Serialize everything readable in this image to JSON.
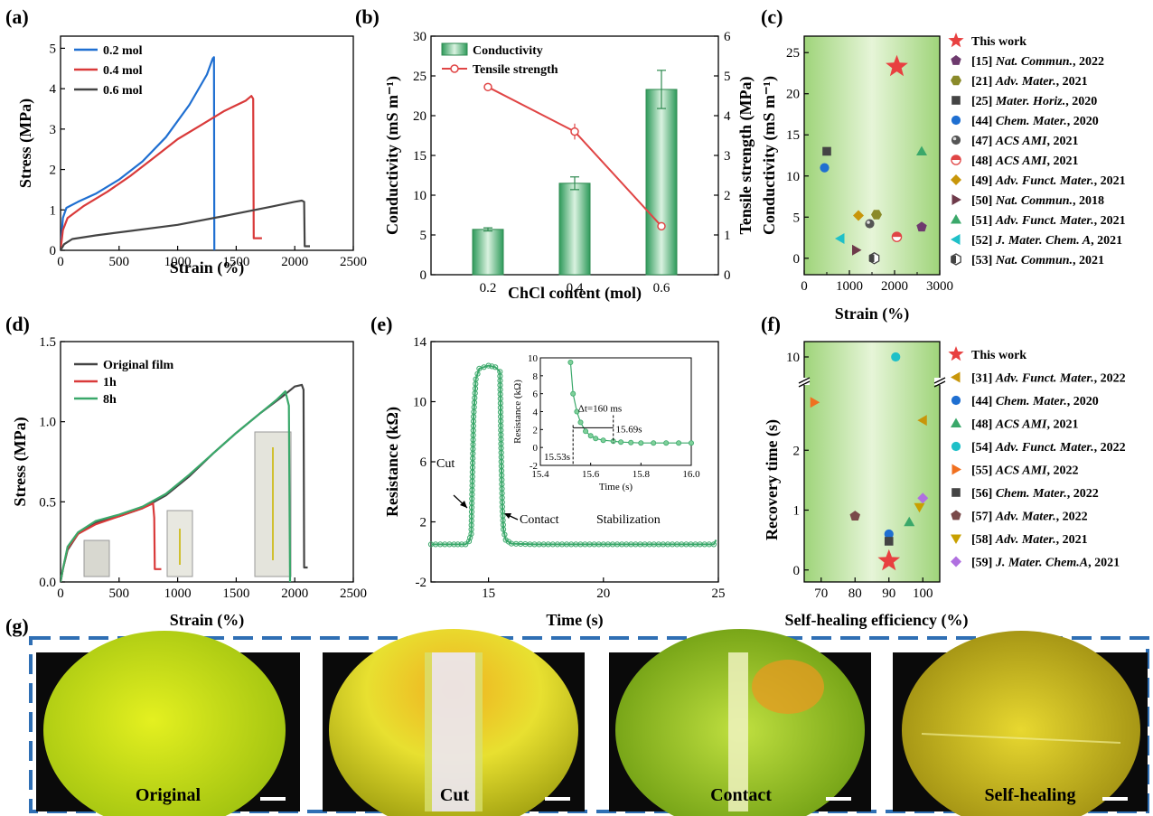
{
  "figure": {
    "panel_labels": [
      "(a)",
      "(b)",
      "(c)",
      "(d)",
      "(e)",
      "(f)",
      "(g)"
    ],
    "photo_captions": [
      "Original",
      "Cut",
      "Contact",
      "Self-healing"
    ]
  },
  "chart_data": [
    {
      "panel": "(a)",
      "type": "line",
      "xlabel": "Strain (%)",
      "ylabel": "Stress (MPa)",
      "xlim": [
        0,
        2500
      ],
      "ylim": [
        0,
        5.3
      ],
      "xticks": [
        0,
        500,
        1000,
        1500,
        2000,
        2500
      ],
      "yticks": [
        0,
        1,
        2,
        3,
        4,
        5
      ],
      "legend_position": "top-left",
      "series": [
        {
          "name": "0.2 mol",
          "color": "#1f6fd1",
          "points": [
            [
              0,
              0
            ],
            [
              20,
              0.8
            ],
            [
              50,
              1.05
            ],
            [
              150,
              1.2
            ],
            [
              300,
              1.4
            ],
            [
              500,
              1.75
            ],
            [
              700,
              2.2
            ],
            [
              900,
              2.8
            ],
            [
              1100,
              3.6
            ],
            [
              1250,
              4.35
            ],
            [
              1300,
              4.75
            ],
            [
              1310,
              4.78
            ],
            [
              1312,
              2.5
            ],
            [
              1313,
              0
            ]
          ]
        },
        {
          "name": "0.4 mol",
          "color": "#d93a3a",
          "points": [
            [
              0,
              0
            ],
            [
              20,
              0.5
            ],
            [
              60,
              0.8
            ],
            [
              200,
              1.1
            ],
            [
              400,
              1.45
            ],
            [
              600,
              1.85
            ],
            [
              800,
              2.3
            ],
            [
              1000,
              2.75
            ],
            [
              1200,
              3.1
            ],
            [
              1400,
              3.45
            ],
            [
              1580,
              3.7
            ],
            [
              1630,
              3.82
            ],
            [
              1645,
              3.75
            ],
            [
              1650,
              0.3
            ],
            [
              1720,
              0.3
            ]
          ]
        },
        {
          "name": "0.6 mol",
          "color": "#444444",
          "points": [
            [
              0,
              0
            ],
            [
              30,
              0.15
            ],
            [
              100,
              0.28
            ],
            [
              300,
              0.37
            ],
            [
              600,
              0.48
            ],
            [
              1000,
              0.63
            ],
            [
              1400,
              0.85
            ],
            [
              1800,
              1.08
            ],
            [
              2000,
              1.2
            ],
            [
              2060,
              1.23
            ],
            [
              2080,
              1.2
            ],
            [
              2085,
              0.1
            ],
            [
              2130,
              0.1
            ]
          ]
        }
      ]
    },
    {
      "panel": "(b)",
      "type": "bar",
      "xlabel": "ChCl content (mol)",
      "ylabel": "Conductivity (mS m⁻¹)",
      "ylabel_right": "Tensile strength (MPa)",
      "categories": [
        "0.2",
        "0.4",
        "0.6"
      ],
      "ylim": [
        0,
        30
      ],
      "ylim_right": [
        0,
        6
      ],
      "yticks": [
        0,
        5,
        10,
        15,
        20,
        25,
        30
      ],
      "yticks_right": [
        0,
        1,
        2,
        3,
        4,
        5,
        6
      ],
      "legend_position": "top-left",
      "series": [
        {
          "name": "Conductivity",
          "axis": "left",
          "color": "#5fbf7f",
          "values": [
            5.7,
            11.5,
            23.3
          ],
          "errors": [
            0.2,
            0.8,
            2.4
          ]
        },
        {
          "name": "Tensile strength",
          "axis": "right",
          "color": "#e04545",
          "values": [
            4.72,
            3.6,
            1.22
          ],
          "errors": [
            0.05,
            0.2,
            0.05
          ]
        }
      ]
    },
    {
      "panel": "(c)",
      "type": "scatter",
      "xlabel": "Strain (%)",
      "ylabel": "Conductivity (mS m⁻¹)",
      "xlim": [
        0,
        3000
      ],
      "ylim": [
        -2,
        27
      ],
      "xticks": [
        0,
        1000,
        2000,
        3000
      ],
      "xtick_labels": [
        "0",
        "1000",
        "2000",
        "3000"
      ],
      "xtick_minor": [
        500,
        1500,
        2500
      ],
      "yticks": [
        0,
        5,
        10,
        15,
        20,
        25
      ],
      "legend_position": "right",
      "series": [
        {
          "name": "This work",
          "ref": "",
          "journal": "",
          "year": "",
          "marker": "star",
          "color": "#e84040",
          "x": 2050,
          "y": 23.3
        },
        {
          "name": "[15]",
          "ref": "[15]",
          "journal": "Nat. Commun.",
          "year": ", 2022",
          "marker": "pentagon",
          "color": "#6e3a6e",
          "x": 2600,
          "y": 3.8
        },
        {
          "name": "[21]",
          "ref": "[21]",
          "journal": "Adv. Mater.",
          "year": ", 2021",
          "marker": "hexagon",
          "color": "#8a8a2a",
          "x": 1600,
          "y": 5.3
        },
        {
          "name": "[25]",
          "ref": "[25]",
          "journal": "Mater. Horiz.",
          "year": ", 2020",
          "marker": "square",
          "color": "#444444",
          "x": 500,
          "y": 13.0
        },
        {
          "name": "[44]",
          "ref": "[44]",
          "journal": "Chem. Mater.",
          "year": ", 2020",
          "marker": "circle",
          "color": "#1f6fd1",
          "x": 450,
          "y": 11.0
        },
        {
          "name": "[47]",
          "ref": "[47]",
          "journal": "ACS AMI",
          "year": ", 2021",
          "marker": "sphere",
          "color": "#555555",
          "x": 1450,
          "y": 4.2
        },
        {
          "name": "[48]",
          "ref": "[48]",
          "journal": "ACS AMI",
          "year": ", 2021",
          "marker": "halfcircle",
          "color": "#e04545",
          "x": 2050,
          "y": 2.6
        },
        {
          "name": "[49]",
          "ref": "[49]",
          "journal": "Adv. Funct. Mater.",
          "year": ", 2021",
          "marker": "diamond",
          "color": "#c8960a",
          "x": 1200,
          "y": 5.2
        },
        {
          "name": "[50]",
          "ref": "[50]",
          "journal": "Nat. Commun.",
          "year": ", 2018",
          "marker": "triright",
          "color": "#6e3a4a",
          "x": 1150,
          "y": 1.0
        },
        {
          "name": "[51]",
          "ref": "[51]",
          "journal": "Adv. Funct. Mater.",
          "year": ", 2021",
          "marker": "triup",
          "color": "#3aa86a",
          "x": 2600,
          "y": 13.0
        },
        {
          "name": "[52]",
          "ref": "[52]",
          "journal": "J. Mater. Chem. A",
          "year": ", 2021",
          "marker": "trileft",
          "color": "#1fc0c8",
          "x": 800,
          "y": 2.4
        },
        {
          "name": "[53]",
          "ref": "[53]",
          "journal": "Nat. Commun.",
          "year": ", 2021",
          "marker": "halfhex",
          "color": "#444444",
          "x": 1550,
          "y": 0.0
        }
      ]
    },
    {
      "panel": "(d)",
      "type": "line",
      "xlabel": "Strain (%)",
      "ylabel": "Stress (MPa)",
      "xlim": [
        0,
        2500
      ],
      "ylim": [
        0,
        1.5
      ],
      "xticks": [
        0,
        500,
        1000,
        1500,
        2000,
        2500
      ],
      "yticks": [
        0,
        0.5,
        1.0,
        1.5
      ],
      "ytick_labels": [
        "0.0",
        "0.5",
        "1.0",
        "1.5"
      ],
      "legend_position": "top-left",
      "series": [
        {
          "name": "Original film",
          "color": "#444444",
          "points": [
            [
              0,
              0
            ],
            [
              20,
              0.08
            ],
            [
              60,
              0.2
            ],
            [
              150,
              0.3
            ],
            [
              300,
              0.37
            ],
            [
              500,
              0.41
            ],
            [
              700,
              0.46
            ],
            [
              900,
              0.54
            ],
            [
              1100,
              0.66
            ],
            [
              1300,
              0.8
            ],
            [
              1500,
              0.93
            ],
            [
              1700,
              1.05
            ],
            [
              1900,
              1.16
            ],
            [
              2000,
              1.22
            ],
            [
              2060,
              1.23
            ],
            [
              2075,
              1.2
            ],
            [
              2080,
              0.09
            ],
            [
              2110,
              0.09
            ]
          ]
        },
        {
          "name": "1h",
          "color": "#d93a3a",
          "points": [
            [
              0,
              0
            ],
            [
              20,
              0.08
            ],
            [
              60,
              0.21
            ],
            [
              150,
              0.3
            ],
            [
              300,
              0.36
            ],
            [
              500,
              0.41
            ],
            [
              700,
              0.46
            ],
            [
              790,
              0.49
            ],
            [
              800,
              0.4
            ],
            [
              805,
              0.08
            ],
            [
              860,
              0.08
            ]
          ]
        },
        {
          "name": "8h",
          "color": "#3aa86a",
          "points": [
            [
              0,
              0
            ],
            [
              20,
              0.08
            ],
            [
              60,
              0.22
            ],
            [
              150,
              0.31
            ],
            [
              300,
              0.38
            ],
            [
              500,
              0.42
            ],
            [
              700,
              0.47
            ],
            [
              900,
              0.55
            ],
            [
              1100,
              0.67
            ],
            [
              1300,
              0.8
            ],
            [
              1500,
              0.93
            ],
            [
              1700,
              1.05
            ],
            [
              1850,
              1.14
            ],
            [
              1920,
              1.19
            ],
            [
              1950,
              1.1
            ],
            [
              1960,
              0.0
            ]
          ]
        }
      ]
    },
    {
      "panel": "(e)",
      "type": "line",
      "xlabel": "Time (s)",
      "ylabel": "Resistance (kΩ)",
      "xlim": [
        12.5,
        25
      ],
      "ylim": [
        -2,
        14
      ],
      "xticks": [
        15,
        20,
        25
      ],
      "yticks": [
        -2,
        2,
        6,
        10,
        14
      ],
      "annotations": [
        "Cut",
        "Contact",
        "Stabilization"
      ],
      "series": [
        {
          "name": "",
          "color": "#3aa86a",
          "points": [
            [
              12.5,
              0.5
            ],
            [
              13.5,
              0.5
            ],
            [
              14.0,
              0.5
            ],
            [
              14.15,
              0.7
            ],
            [
              14.25,
              1.2
            ],
            [
              14.3,
              5.0
            ],
            [
              14.35,
              9.0
            ],
            [
              14.45,
              11.5
            ],
            [
              14.6,
              12.2
            ],
            [
              15.0,
              12.4
            ],
            [
              15.3,
              12.3
            ],
            [
              15.5,
              12.0
            ],
            [
              15.53,
              9.0
            ],
            [
              15.56,
              6.0
            ],
            [
              15.6,
              3.0
            ],
            [
              15.65,
              1.5
            ],
            [
              15.75,
              0.8
            ],
            [
              16.0,
              0.55
            ],
            [
              17,
              0.5
            ],
            [
              20,
              0.5
            ],
            [
              24.8,
              0.5
            ],
            [
              24.9,
              0.8
            ]
          ]
        }
      ]
    },
    {
      "panel": "(e) inset",
      "type": "scatter",
      "xlabel": "Time (s)",
      "ylabel": "Resistance (kΩ)",
      "xlim": [
        15.4,
        16.0
      ],
      "ylim": [
        -2,
        10
      ],
      "xticks": [
        15.4,
        15.6,
        15.8,
        16.0
      ],
      "xtick_labels": [
        "15.4",
        "15.6",
        "15.8",
        "16.0"
      ],
      "yticks": [
        -2,
        0,
        2,
        4,
        6,
        8,
        10
      ],
      "annotations": [
        "Δt=160 ms",
        "15.69s",
        "15.53s"
      ],
      "series": [
        {
          "name": "",
          "color": "#3aa86a",
          "points": [
            [
              15.52,
              9.5
            ],
            [
              15.53,
              6.0
            ],
            [
              15.545,
              4.0
            ],
            [
              15.56,
              2.8
            ],
            [
              15.58,
              1.8
            ],
            [
              15.6,
              1.3
            ],
            [
              15.62,
              1.0
            ],
            [
              15.65,
              0.8
            ],
            [
              15.69,
              0.7
            ],
            [
              15.72,
              0.6
            ],
            [
              15.76,
              0.55
            ],
            [
              15.8,
              0.5
            ],
            [
              15.85,
              0.5
            ],
            [
              15.9,
              0.5
            ],
            [
              15.95,
              0.5
            ],
            [
              16.0,
              0.5
            ]
          ]
        }
      ]
    },
    {
      "panel": "(f)",
      "type": "scatter",
      "xlabel": "Self-healing efficiency (%)",
      "ylabel": "Recovery time (s)",
      "xlim": [
        65,
        105
      ],
      "xticks": [
        70,
        80,
        90,
        100
      ],
      "yticks_lower": [
        0,
        1,
        2
      ],
      "yticks_upper": [
        10
      ],
      "ylim_lower": [
        -0.2,
        3.0
      ],
      "ylim_upper": [
        9.3,
        10.7
      ],
      "axis_break": true,
      "legend_position": "right",
      "series": [
        {
          "name": "This work",
          "ref": "",
          "journal": "",
          "year": "",
          "marker": "star",
          "color": "#e84040",
          "x": 90,
          "y": 0.15
        },
        {
          "name": "[31]",
          "ref": "[31]",
          "journal": "Adv. Funct. Mater.",
          "year": ", 2022",
          "marker": "trileft",
          "color": "#c8960a",
          "x": 100,
          "y": 2.5
        },
        {
          "name": "[44]",
          "ref": "[44]",
          "journal": "Chem. Mater.",
          "year": ", 2020",
          "marker": "circle",
          "color": "#1f6fd1",
          "x": 90,
          "y": 0.6
        },
        {
          "name": "[48]",
          "ref": "[48]",
          "journal": "ACS AMI",
          "year": ", 2021",
          "marker": "triup",
          "color": "#3aa86a",
          "x": 96,
          "y": 0.8
        },
        {
          "name": "[54]",
          "ref": "[54]",
          "journal": "Adv. Funct. Mater.",
          "year": ", 2022",
          "marker": "circle",
          "color": "#1fc0c8",
          "x": 92,
          "y": 10
        },
        {
          "name": "[55]",
          "ref": "[55]",
          "journal": "ACS AMI",
          "year": ", 2022",
          "marker": "triright",
          "color": "#f07020",
          "x": 68,
          "y": 2.8
        },
        {
          "name": "[56]",
          "ref": "[56]",
          "journal": "Chem. Mater.",
          "year": ", 2022",
          "marker": "square",
          "color": "#444444",
          "x": 90,
          "y": 0.48
        },
        {
          "name": "[57]",
          "ref": "[57]",
          "journal": "Adv. Mater.",
          "year": ", 2022",
          "marker": "pentagon",
          "color": "#7a4a4a",
          "x": 80,
          "y": 0.9
        },
        {
          "name": "[58]",
          "ref": "[58]",
          "journal": "Adv. Mater.",
          "year": ", 2021",
          "marker": "tridown",
          "color": "#c8a000",
          "x": 99,
          "y": 1.05
        },
        {
          "name": "[59]",
          "ref": "[59]",
          "journal": "J. Mater. Chem.A",
          "year": ", 2021",
          "marker": "diamond",
          "color": "#b070e0",
          "x": 100,
          "y": 1.2
        }
      ]
    }
  ]
}
